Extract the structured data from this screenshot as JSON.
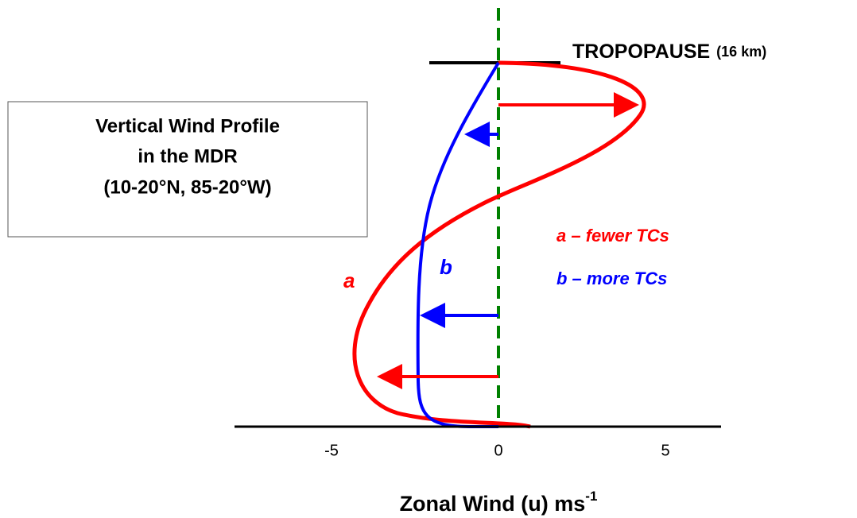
{
  "box": {
    "lines": [
      "Vertical Wind Profile",
      "in the MDR",
      "(10-20°N, 85-20°W)"
    ]
  },
  "tropopause": {
    "label": "TROPOPAUSE",
    "height": "(16 km)"
  },
  "curves": {
    "a": {
      "letter": "a",
      "legend": "a – fewer TCs"
    },
    "b": {
      "letter": "b",
      "legend": "b – more TCs"
    }
  },
  "axis": {
    "ticks": [
      -5,
      0,
      5
    ],
    "label": "Zonal Wind (u) ms",
    "label_exponent": "-1"
  }
}
